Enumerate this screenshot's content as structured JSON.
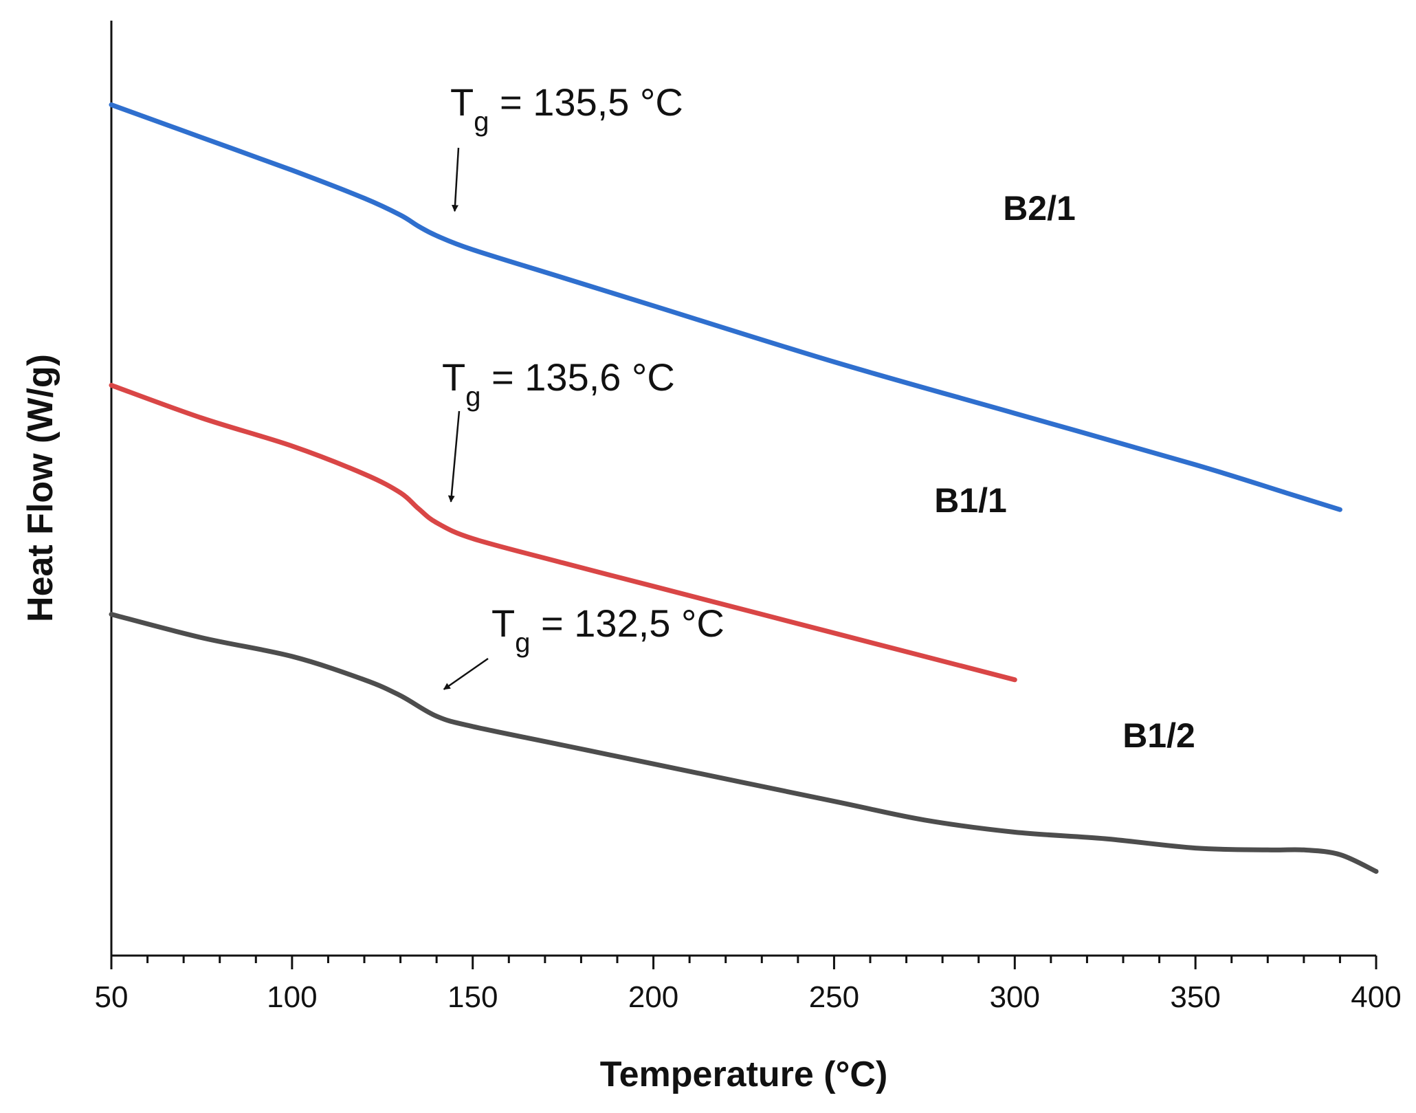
{
  "chart_data": {
    "type": "line",
    "title": "",
    "xlabel": "Temperature (°C)",
    "ylabel": "Heat Flow (W/g)",
    "xlim": [
      50,
      400
    ],
    "ylim": [
      0,
      100
    ],
    "xticks": [
      50,
      100,
      150,
      200,
      250,
      300,
      350,
      400
    ],
    "xtick_labels": [
      "50",
      "100",
      "150",
      "200",
      "250",
      "300",
      "350",
      "400"
    ],
    "grid": false,
    "series": [
      {
        "name": "B2/1",
        "color": "#2f6fce",
        "x": [
          50,
          75,
          100,
          120,
          130,
          135,
          140,
          150,
          175,
          200,
          250,
          300,
          350,
          375,
          390
        ],
        "y": [
          91.0,
          87.5,
          84.0,
          81.0,
          79.2,
          78.0,
          77.0,
          75.5,
          72.5,
          69.5,
          63.5,
          58.0,
          52.5,
          49.5,
          47.7
        ]
      },
      {
        "name": "B1/1",
        "color": "#d94646",
        "x": [
          50,
          75,
          100,
          120,
          130,
          135,
          140,
          150,
          175,
          200,
          250,
          300
        ],
        "y": [
          61.0,
          57.5,
          54.5,
          51.5,
          49.5,
          47.8,
          46.3,
          44.6,
          42.0,
          39.5,
          34.5,
          29.5
        ]
      },
      {
        "name": "B1/2",
        "color": "#4d4d4d",
        "x": [
          50,
          75,
          100,
          120,
          130,
          140,
          150,
          175,
          200,
          250,
          275,
          300,
          325,
          350,
          370,
          380,
          390,
          400
        ],
        "y": [
          36.5,
          34.0,
          32.0,
          29.5,
          27.8,
          25.6,
          24.5,
          22.5,
          20.5,
          16.5,
          14.5,
          13.2,
          12.5,
          11.5,
          11.3,
          11.3,
          10.8,
          9.0
        ]
      }
    ],
    "annotations": [
      {
        "main": "T",
        "sub": "g",
        "rest": " = 135,5 °C",
        "series": "B2/1",
        "x": 135.5,
        "y": 78.0
      },
      {
        "main": "T",
        "sub": "g",
        "rest": " = 135,6 °C",
        "series": "B1/1",
        "x": 135.6,
        "y": 47.8
      },
      {
        "main": "T",
        "sub": "g",
        "rest": " = 132,5 °C",
        "series": "B1/2",
        "x": 132.5,
        "y": 27.3
      }
    ]
  }
}
